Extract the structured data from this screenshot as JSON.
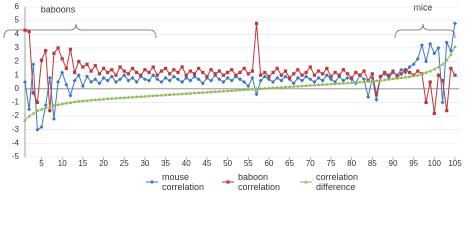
{
  "chart_data": {
    "type": "line",
    "annotations": [
      "baboons",
      "mice"
    ],
    "x": [
      1,
      2,
      3,
      4,
      5,
      6,
      7,
      8,
      9,
      10,
      11,
      12,
      13,
      14,
      15,
      16,
      17,
      18,
      19,
      20,
      21,
      22,
      23,
      24,
      25,
      26,
      27,
      28,
      29,
      30,
      31,
      32,
      33,
      34,
      35,
      36,
      37,
      38,
      39,
      40,
      41,
      42,
      43,
      44,
      45,
      46,
      47,
      48,
      49,
      50,
      51,
      52,
      53,
      54,
      55,
      56,
      57,
      58,
      59,
      60,
      61,
      62,
      63,
      64,
      65,
      66,
      67,
      68,
      69,
      70,
      71,
      72,
      73,
      74,
      75,
      76,
      77,
      78,
      79,
      80,
      81,
      82,
      83,
      84,
      85,
      86,
      87,
      88,
      89,
      90,
      91,
      92,
      93,
      94,
      95,
      96,
      97,
      98,
      99,
      100,
      101,
      102,
      103,
      104,
      105
    ],
    "series": [
      {
        "name": "mouse correlation",
        "color": "#3a78c4",
        "marker": "diamond",
        "values": [
          0.5,
          -1.5,
          1.8,
          -3.0,
          -2.8,
          -1.2,
          0.8,
          -2.2,
          0.5,
          1.2,
          0.3,
          -0.5,
          0.6,
          1.0,
          0.2,
          0.9,
          0.5,
          0.7,
          0.4,
          0.8,
          0.6,
          0.9,
          0.5,
          0.7,
          1.0,
          0.6,
          0.8,
          0.5,
          0.9,
          0.7,
          0.6,
          1.0,
          0.7,
          0.5,
          0.8,
          0.6,
          0.9,
          0.7,
          0.5,
          0.8,
          0.6,
          0.9,
          0.7,
          0.4,
          0.8,
          0.6,
          1.0,
          0.7,
          0.5,
          0.8,
          0.6,
          0.9,
          0.7,
          0.5,
          0.2,
          0.8,
          -0.4,
          0.6,
          0.9,
          0.7,
          0.5,
          0.8,
          0.6,
          0.9,
          0.7,
          0.4,
          0.8,
          0.6,
          0.9,
          0.7,
          0.5,
          0.8,
          0.6,
          1.0,
          0.7,
          0.5,
          0.9,
          0.6,
          0.8,
          0.7,
          0.4,
          1.0,
          0.7,
          -0.6,
          0.8,
          -0.8,
          0.9,
          1.1,
          0.8,
          1.2,
          1.0,
          1.4,
          1.2,
          1.6,
          1.8,
          2.2,
          3.2,
          2.0,
          3.3,
          2.6,
          3.0,
          -1.0,
          3.4,
          2.8,
          4.8
        ]
      },
      {
        "name": "baboon correlation",
        "color": "#c0363c",
        "marker": "square",
        "values": [
          4.3,
          4.2,
          -0.3,
          -1.0,
          2.1,
          2.8,
          -1.6,
          2.6,
          3.0,
          2.2,
          1.5,
          2.9,
          1.2,
          2.0,
          1.6,
          1.8,
          1.3,
          1.7,
          1.1,
          1.5,
          1.2,
          1.4,
          1.0,
          1.6,
          1.3,
          1.1,
          1.5,
          1.2,
          1.0,
          1.4,
          1.2,
          1.6,
          1.0,
          1.3,
          1.5,
          1.1,
          1.4,
          1.2,
          1.6,
          1.0,
          1.3,
          1.1,
          1.5,
          1.2,
          0.9,
          1.4,
          1.1,
          1.3,
          1.0,
          1.2,
          1.4,
          1.0,
          1.2,
          1.5,
          1.1,
          1.3,
          4.8,
          1.0,
          1.2,
          0.9,
          1.2,
          1.5,
          1.0,
          1.3,
          0.8,
          1.1,
          1.4,
          1.0,
          1.2,
          1.6,
          1.0,
          1.3,
          1.1,
          1.5,
          0.9,
          1.2,
          1.0,
          1.4,
          1.1,
          0.8,
          1.2,
          1.0,
          1.3,
          0.6,
          1.1,
          -0.4,
          0.9,
          1.2,
          1.0,
          1.3,
          0.9,
          1.1,
          1.4,
          1.2,
          1.0,
          1.3,
          1.1,
          -1.0,
          0.5,
          -1.8,
          1.0,
          0.6,
          -1.6,
          1.5,
          1.0
        ]
      },
      {
        "name": "correlation difference",
        "color": "#8fba5a",
        "marker": "triangle",
        "values": [
          -2.3,
          -2.0,
          -1.8,
          -1.6,
          -1.5,
          -1.4,
          -1.3,
          -1.2,
          -1.15,
          -1.1,
          -1.05,
          -1.0,
          -0.95,
          -0.9,
          -0.88,
          -0.85,
          -0.82,
          -0.8,
          -0.78,
          -0.75,
          -0.72,
          -0.7,
          -0.68,
          -0.66,
          -0.64,
          -0.62,
          -0.6,
          -0.58,
          -0.56,
          -0.54,
          -0.52,
          -0.5,
          -0.48,
          -0.46,
          -0.44,
          -0.42,
          -0.4,
          -0.38,
          -0.36,
          -0.34,
          -0.32,
          -0.3,
          -0.28,
          -0.26,
          -0.24,
          -0.22,
          -0.2,
          -0.18,
          -0.16,
          -0.14,
          -0.12,
          -0.1,
          -0.08,
          -0.06,
          -0.04,
          -0.02,
          0,
          0.02,
          0.04,
          0.06,
          0.08,
          0.1,
          0.12,
          0.14,
          0.16,
          0.18,
          0.2,
          0.22,
          0.24,
          0.26,
          0.28,
          0.3,
          0.32,
          0.34,
          0.36,
          0.38,
          0.4,
          0.42,
          0.44,
          0.46,
          0.48,
          0.5,
          0.52,
          0.55,
          0.58,
          0.6,
          0.63,
          0.66,
          0.7,
          0.74,
          0.78,
          0.82,
          0.86,
          0.9,
          0.95,
          1.0,
          1.1,
          1.2,
          1.3,
          1.45,
          1.6,
          1.8,
          2.1,
          2.5,
          3.1
        ]
      }
    ],
    "xlim": [
      1,
      105
    ],
    "xticks": [
      5,
      10,
      15,
      20,
      25,
      30,
      35,
      40,
      45,
      50,
      55,
      60,
      65,
      70,
      75,
      80,
      85,
      90,
      95,
      100,
      105
    ],
    "ylim": [
      -5,
      6
    ],
    "yticks": [
      -5,
      -4,
      -3,
      -2,
      -1,
      0,
      1,
      2,
      3,
      4,
      5,
      6
    ],
    "grid": true
  }
}
